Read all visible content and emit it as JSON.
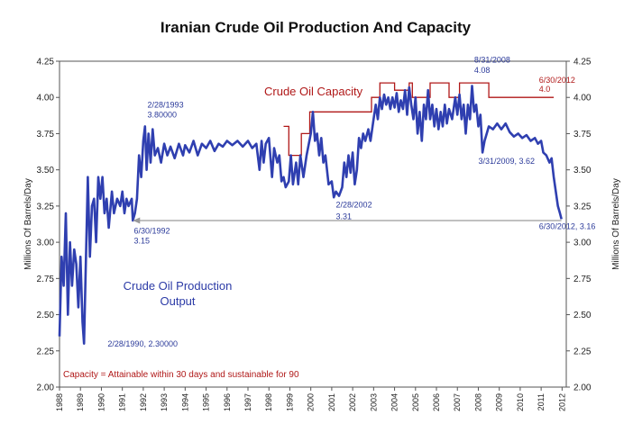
{
  "chart_data": {
    "type": "line",
    "title": "Iranian Crude Oil Production And Capacity",
    "ylabel_left": "Millions Of Barrels/Day",
    "ylabel_right": "Millions Of Barrels/Day",
    "ylim": [
      2.0,
      4.25
    ],
    "xlim": [
      1988,
      2012.2
    ],
    "yticks": [
      "2.00",
      "2.25",
      "2.50",
      "2.75",
      "3.00",
      "3.25",
      "3.50",
      "3.75",
      "4.00",
      "4.25"
    ],
    "xticks": [
      "1988",
      "1989",
      "1990",
      "1991",
      "1992",
      "1993",
      "1994",
      "1995",
      "1996",
      "1997",
      "1998",
      "1999",
      "2000",
      "2001",
      "2002",
      "2003",
      "2004",
      "2005",
      "2006",
      "2007",
      "2008",
      "2009",
      "2010",
      "2011",
      "2012"
    ],
    "series": [
      {
        "name": "Crude Oil Production Output",
        "color": "#2f3fb0",
        "points": [
          [
            1988.0,
            2.35
          ],
          [
            1988.1,
            2.9
          ],
          [
            1988.2,
            2.7
          ],
          [
            1988.3,
            3.2
          ],
          [
            1988.4,
            2.5
          ],
          [
            1988.5,
            3.0
          ],
          [
            1988.6,
            2.7
          ],
          [
            1988.7,
            2.95
          ],
          [
            1988.8,
            2.85
          ],
          [
            1988.9,
            2.55
          ],
          [
            1989.0,
            2.9
          ],
          [
            1989.1,
            2.45
          ],
          [
            1989.17,
            2.3
          ],
          [
            1989.25,
            2.8
          ],
          [
            1989.35,
            3.45
          ],
          [
            1989.45,
            2.9
          ],
          [
            1989.55,
            3.25
          ],
          [
            1989.65,
            3.3
          ],
          [
            1989.75,
            3.0
          ],
          [
            1989.85,
            3.45
          ],
          [
            1989.95,
            3.3
          ],
          [
            1990.05,
            3.45
          ],
          [
            1990.15,
            3.2
          ],
          [
            1990.25,
            3.3
          ],
          [
            1990.35,
            3.1
          ],
          [
            1990.5,
            3.35
          ],
          [
            1990.6,
            3.2
          ],
          [
            1990.75,
            3.3
          ],
          [
            1990.9,
            3.25
          ],
          [
            1991.0,
            3.35
          ],
          [
            1991.1,
            3.2
          ],
          [
            1991.2,
            3.3
          ],
          [
            1991.3,
            3.25
          ],
          [
            1991.45,
            3.3
          ],
          [
            1991.5,
            3.15
          ],
          [
            1991.6,
            3.2
          ],
          [
            1991.7,
            3.3
          ],
          [
            1991.8,
            3.6
          ],
          [
            1991.9,
            3.45
          ],
          [
            1992.0,
            3.7
          ],
          [
            1992.08,
            3.8
          ],
          [
            1992.16,
            3.5
          ],
          [
            1992.25,
            3.75
          ],
          [
            1992.35,
            3.55
          ],
          [
            1992.45,
            3.78
          ],
          [
            1992.55,
            3.6
          ],
          [
            1992.7,
            3.65
          ],
          [
            1992.85,
            3.55
          ],
          [
            1993.0,
            3.68
          ],
          [
            1993.15,
            3.6
          ],
          [
            1993.3,
            3.66
          ],
          [
            1993.5,
            3.58
          ],
          [
            1993.7,
            3.68
          ],
          [
            1993.9,
            3.6
          ],
          [
            1994.0,
            3.67
          ],
          [
            1994.2,
            3.62
          ],
          [
            1994.4,
            3.7
          ],
          [
            1994.6,
            3.6
          ],
          [
            1994.8,
            3.68
          ],
          [
            1995.0,
            3.65
          ],
          [
            1995.2,
            3.7
          ],
          [
            1995.4,
            3.63
          ],
          [
            1995.6,
            3.68
          ],
          [
            1995.8,
            3.66
          ],
          [
            1996.0,
            3.7
          ],
          [
            1996.25,
            3.67
          ],
          [
            1996.5,
            3.7
          ],
          [
            1996.75,
            3.66
          ],
          [
            1997.0,
            3.7
          ],
          [
            1997.2,
            3.65
          ],
          [
            1997.4,
            3.68
          ],
          [
            1997.55,
            3.5
          ],
          [
            1997.65,
            3.7
          ],
          [
            1997.75,
            3.55
          ],
          [
            1997.85,
            3.68
          ],
          [
            1998.0,
            3.72
          ],
          [
            1998.15,
            3.45
          ],
          [
            1998.25,
            3.65
          ],
          [
            1998.4,
            3.55
          ],
          [
            1998.5,
            3.6
          ],
          [
            1998.6,
            3.42
          ],
          [
            1998.7,
            3.45
          ],
          [
            1998.8,
            3.38
          ],
          [
            1998.95,
            3.42
          ],
          [
            1999.05,
            3.6
          ],
          [
            1999.15,
            3.4
          ],
          [
            1999.3,
            3.55
          ],
          [
            1999.4,
            3.4
          ],
          [
            1999.5,
            3.6
          ],
          [
            1999.65,
            3.45
          ],
          [
            1999.8,
            3.6
          ],
          [
            2000.0,
            3.75
          ],
          [
            2000.1,
            3.9
          ],
          [
            2000.2,
            3.7
          ],
          [
            2000.3,
            3.75
          ],
          [
            2000.4,
            3.6
          ],
          [
            2000.5,
            3.72
          ],
          [
            2000.6,
            3.55
          ],
          [
            2000.7,
            3.6
          ],
          [
            2000.85,
            3.4
          ],
          [
            2001.0,
            3.42
          ],
          [
            2001.1,
            3.31
          ],
          [
            2001.2,
            3.35
          ],
          [
            2001.35,
            3.32
          ],
          [
            2001.5,
            3.38
          ],
          [
            2001.6,
            3.55
          ],
          [
            2001.7,
            3.45
          ],
          [
            2001.8,
            3.6
          ],
          [
            2001.9,
            3.48
          ],
          [
            2002.0,
            3.62
          ],
          [
            2002.1,
            3.4
          ],
          [
            2002.2,
            3.5
          ],
          [
            2002.3,
            3.72
          ],
          [
            2002.4,
            3.65
          ],
          [
            2002.5,
            3.75
          ],
          [
            2002.6,
            3.7
          ],
          [
            2002.75,
            3.78
          ],
          [
            2002.85,
            3.7
          ],
          [
            2003.0,
            3.85
          ],
          [
            2003.1,
            3.95
          ],
          [
            2003.2,
            3.85
          ],
          [
            2003.3,
            4.0
          ],
          [
            2003.4,
            3.92
          ],
          [
            2003.5,
            4.02
          ],
          [
            2003.6,
            3.95
          ],
          [
            2003.7,
            4.0
          ],
          [
            2003.8,
            3.92
          ],
          [
            2003.9,
            4.0
          ],
          [
            2004.0,
            3.93
          ],
          [
            2004.1,
            4.03
          ],
          [
            2004.2,
            3.9
          ],
          [
            2004.3,
            3.98
          ],
          [
            2004.4,
            3.92
          ],
          [
            2004.5,
            4.05
          ],
          [
            2004.6,
            3.88
          ],
          [
            2004.7,
            4.07
          ],
          [
            2004.8,
            3.95
          ],
          [
            2004.9,
            3.85
          ],
          [
            2005.0,
            4.0
          ],
          [
            2005.1,
            3.75
          ],
          [
            2005.2,
            3.9
          ],
          [
            2005.3,
            3.7
          ],
          [
            2005.4,
            3.95
          ],
          [
            2005.5,
            3.85
          ],
          [
            2005.6,
            4.05
          ],
          [
            2005.7,
            3.85
          ],
          [
            2005.8,
            3.95
          ],
          [
            2005.9,
            3.8
          ],
          [
            2006.0,
            3.92
          ],
          [
            2006.1,
            3.78
          ],
          [
            2006.2,
            3.9
          ],
          [
            2006.3,
            3.8
          ],
          [
            2006.4,
            3.95
          ],
          [
            2006.5,
            3.82
          ],
          [
            2006.6,
            3.92
          ],
          [
            2006.75,
            3.85
          ],
          [
            2006.9,
            4.0
          ],
          [
            2007.0,
            3.88
          ],
          [
            2007.1,
            4.02
          ],
          [
            2007.2,
            3.85
          ],
          [
            2007.3,
            3.95
          ],
          [
            2007.4,
            3.75
          ],
          [
            2007.5,
            3.95
          ],
          [
            2007.6,
            3.85
          ],
          [
            2007.7,
            4.08
          ],
          [
            2007.8,
            3.9
          ],
          [
            2007.9,
            3.95
          ],
          [
            2008.0,
            3.8
          ],
          [
            2008.1,
            3.88
          ],
          [
            2008.2,
            3.62
          ],
          [
            2008.3,
            3.7
          ],
          [
            2008.4,
            3.75
          ],
          [
            2008.5,
            3.8
          ],
          [
            2008.7,
            3.78
          ],
          [
            2008.9,
            3.82
          ],
          [
            2009.1,
            3.78
          ],
          [
            2009.3,
            3.82
          ],
          [
            2009.5,
            3.76
          ],
          [
            2009.7,
            3.73
          ],
          [
            2009.9,
            3.75
          ],
          [
            2010.1,
            3.72
          ],
          [
            2010.3,
            3.74
          ],
          [
            2010.5,
            3.7
          ],
          [
            2010.7,
            3.72
          ],
          [
            2010.85,
            3.68
          ],
          [
            2011.0,
            3.7
          ],
          [
            2011.1,
            3.62
          ],
          [
            2011.25,
            3.6
          ],
          [
            2011.4,
            3.55
          ],
          [
            2011.5,
            3.58
          ],
          [
            2011.6,
            3.45
          ],
          [
            2011.7,
            3.35
          ],
          [
            2011.8,
            3.25
          ],
          [
            2011.9,
            3.2
          ],
          [
            2011.97,
            3.16
          ]
        ]
      },
      {
        "name": "Crude Oil Capacity",
        "color": "#b01818",
        "points": [
          [
            1998.7,
            3.8
          ],
          [
            1998.95,
            3.8
          ],
          [
            1998.95,
            3.6
          ],
          [
            1999.55,
            3.6
          ],
          [
            1999.55,
            3.75
          ],
          [
            1999.95,
            3.75
          ],
          [
            1999.95,
            3.9
          ],
          [
            2002.9,
            3.9
          ],
          [
            2002.9,
            4.0
          ],
          [
            2003.3,
            4.0
          ],
          [
            2003.3,
            4.1
          ],
          [
            2004.0,
            4.1
          ],
          [
            2004.0,
            4.05
          ],
          [
            2004.7,
            4.05
          ],
          [
            2004.7,
            4.1
          ],
          [
            2004.85,
            4.1
          ],
          [
            2004.85,
            4.0
          ],
          [
            2005.7,
            4.0
          ],
          [
            2005.7,
            4.1
          ],
          [
            2006.6,
            4.1
          ],
          [
            2006.6,
            4.0
          ],
          [
            2007.1,
            4.0
          ],
          [
            2007.1,
            4.1
          ],
          [
            2008.5,
            4.1
          ],
          [
            2008.5,
            4.0
          ],
          [
            2011.6,
            4.0
          ]
        ]
      }
    ],
    "reference_line": {
      "from_x": 1991.5,
      "to_x": 2011.97,
      "y": 3.15,
      "color": "#9a9a9a"
    },
    "annotations": [
      {
        "text": "2/28/1993",
        "x": 1992.2,
        "y": 3.93,
        "color": "#2b3a9a"
      },
      {
        "text": "3.80000",
        "x": 1992.2,
        "y": 3.86,
        "color": "#2b3a9a"
      },
      {
        "text": "6/30/1992",
        "x": 1991.55,
        "y": 3.06,
        "color": "#2b3a9a"
      },
      {
        "text": "3.15",
        "x": 1991.55,
        "y": 2.99,
        "color": "#2b3a9a"
      },
      {
        "text": "2/28/1990, 2.30000",
        "x": 1990.3,
        "y": 2.28,
        "color": "#2b3a9a"
      },
      {
        "text": "2/28/2002",
        "x": 2001.2,
        "y": 3.24,
        "color": "#2b3a9a"
      },
      {
        "text": "3.31",
        "x": 2001.2,
        "y": 3.16,
        "color": "#2b3a9a"
      },
      {
        "text": "3/31/2009, 3.62",
        "x": 2008.0,
        "y": 3.54,
        "color": "#2b3a9a"
      },
      {
        "text": "6/30/2012, 3.16",
        "x": 2010.9,
        "y": 3.09,
        "color": "#2b3a9a"
      },
      {
        "text": "8/31/2008",
        "x": 2007.8,
        "y": 4.24,
        "color": "#2b3a9a"
      },
      {
        "text": "4.08",
        "x": 2007.8,
        "y": 4.17,
        "color": "#2b3a9a"
      },
      {
        "text": "6/30/2012",
        "x": 2010.9,
        "y": 4.1,
        "color": "#b01818"
      },
      {
        "text": "4.0",
        "x": 2010.9,
        "y": 4.04,
        "color": "#b01818"
      }
    ],
    "legend": {
      "production": [
        "Crude Oil Production",
        "Output"
      ],
      "capacity": "Crude Oil Capacity"
    },
    "footnote": "Capacity = Attainable within 30 days and sustainable for 90"
  }
}
